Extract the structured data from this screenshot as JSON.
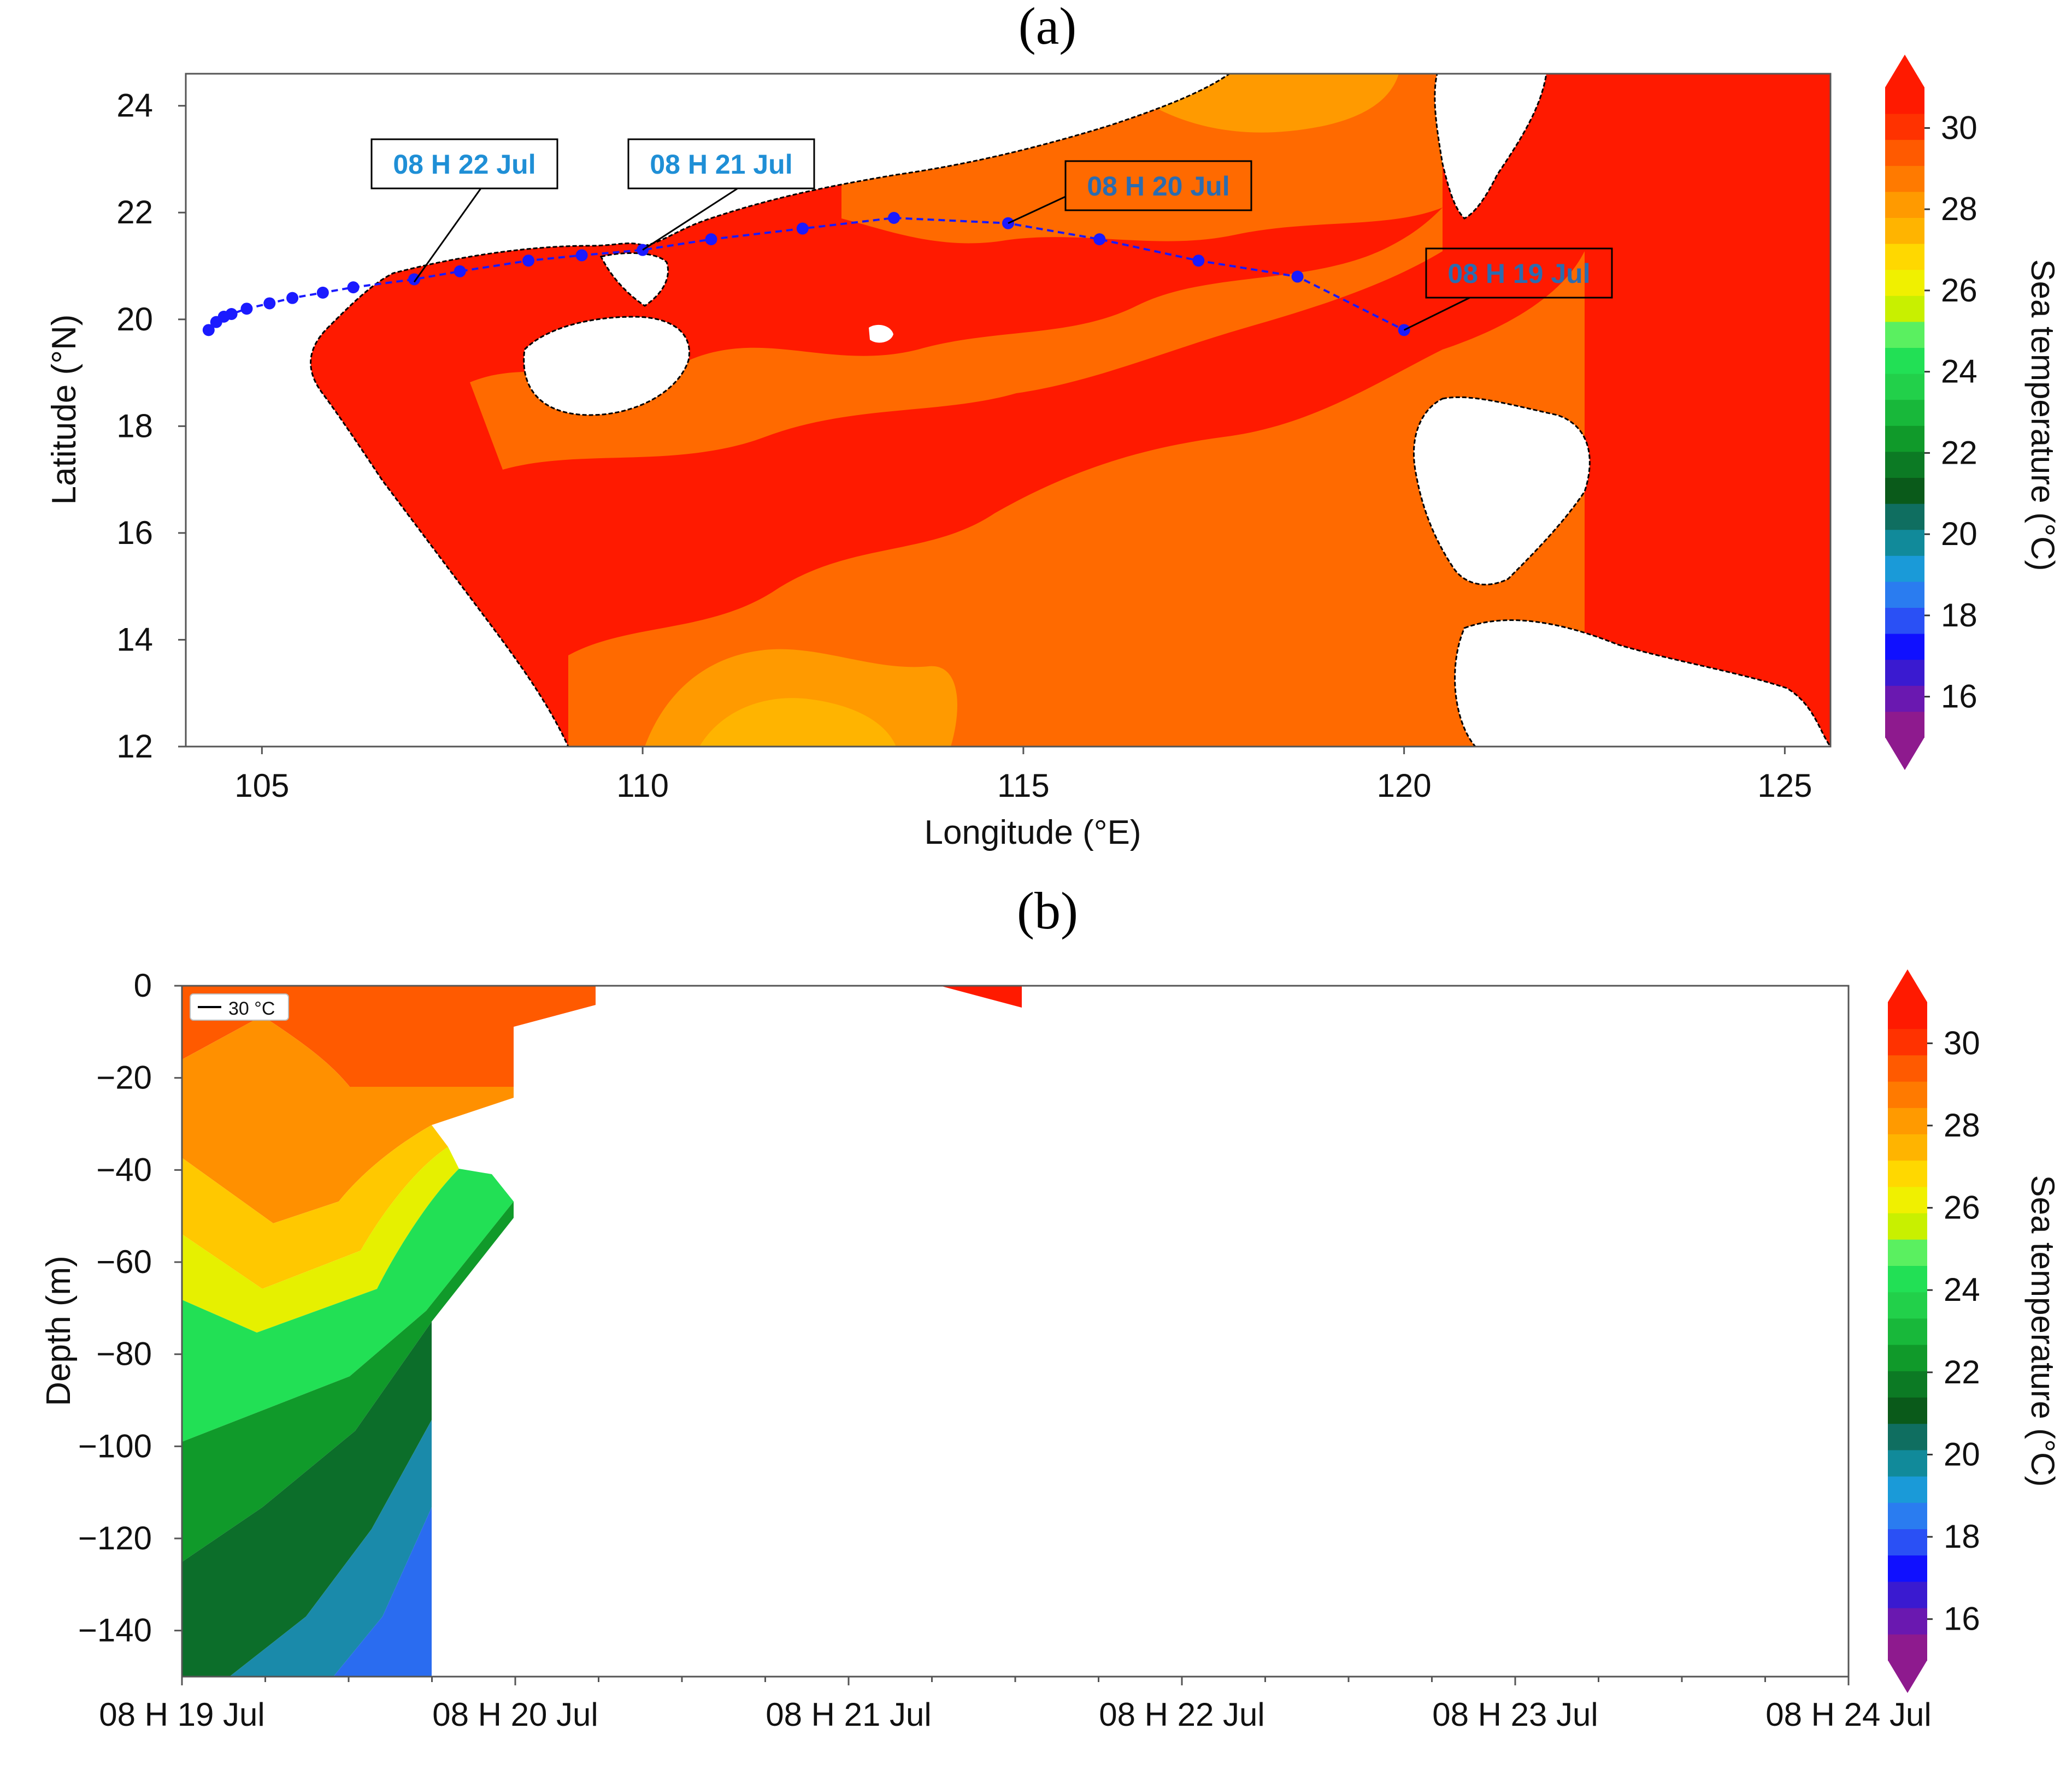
{
  "panel_a": {
    "label": "(a)",
    "xlabel": "Longitude (°E)",
    "ylabel": "Latitude (°N)",
    "colorbar_title": "Sea temperature  (°C)",
    "annotations": [
      {
        "text": "08 H 22 Jul",
        "lon": 107.0,
        "lat": 20.7,
        "color": "#1f8fd6"
      },
      {
        "text": "08 H 21 Jul",
        "lon": 110.0,
        "lat": 21.3,
        "color": "#1f8fd6"
      },
      {
        "text": "08 H 20 Jul",
        "lon": 114.8,
        "lat": 21.8,
        "color": "#2b6cb0"
      },
      {
        "text": "08 H 19 Jul",
        "lon": 120.0,
        "lat": 19.8,
        "color": "#2b6cb0"
      }
    ]
  },
  "panel_b": {
    "label": "(b)",
    "ylabel": "Depth (m)",
    "colorbar_title": "Sea temperature  (°C)",
    "legend_label": "30 °C"
  },
  "colors": {
    "track": "#1a1aff",
    "sst_hot": "#ff1a00",
    "sst_warm": "#ff7a00",
    "land": "#ffffff"
  },
  "chart_data": [
    {
      "type": "heatmap",
      "name": "panel-a-map",
      "title": "(a)",
      "xlabel": "Longitude (°E)",
      "ylabel": "Latitude (°N)",
      "xlim": [
        104.0,
        125.6
      ],
      "ylim": [
        12,
        24.6
      ],
      "xticks": [
        105,
        110,
        115,
        120,
        125
      ],
      "yticks": [
        12,
        14,
        16,
        18,
        20,
        22,
        24
      ],
      "colorbar": {
        "label": "Sea temperature  (°C)",
        "min": 15,
        "max": 31,
        "ticks": [
          16,
          18,
          20,
          22,
          24,
          26,
          28,
          30
        ]
      },
      "track": {
        "lon": [
          104.3,
          104.4,
          104.5,
          104.6,
          104.8,
          105.1,
          105.4,
          105.8,
          106.2,
          107.0,
          107.6,
          108.5,
          109.2,
          110.0,
          110.9,
          112.1,
          113.3,
          114.8,
          116.0,
          117.3,
          118.6,
          120.0
        ],
        "lat": [
          19.8,
          19.95,
          20.05,
          20.1,
          20.2,
          20.3,
          20.4,
          20.5,
          20.6,
          20.75,
          20.9,
          21.1,
          21.2,
          21.3,
          21.5,
          21.7,
          21.9,
          21.8,
          21.5,
          21.1,
          20.8,
          19.8
        ]
      }
    },
    {
      "type": "heatmap",
      "name": "panel-b-section",
      "title": "(b)",
      "xlabel": "",
      "ylabel": "Depth (m)",
      "x_categories": [
        "08 H 19 Jul",
        "08 H 20 Jul",
        "08 H 21 Jul",
        "08 H 22 Jul",
        "08 H 23 Jul",
        "08 H 24 Jul"
      ],
      "xlim": [
        0,
        5
      ],
      "ylim": [
        -150,
        0
      ],
      "yticks": [
        0,
        -20,
        -40,
        -60,
        -80,
        -100,
        -120,
        -140
      ],
      "colorbar": {
        "label": "Sea temperature  (°C)",
        "min": 15,
        "max": 31,
        "ticks": [
          16,
          18,
          20,
          22,
          24,
          26,
          28,
          30
        ]
      },
      "legend": "30 °C"
    }
  ]
}
